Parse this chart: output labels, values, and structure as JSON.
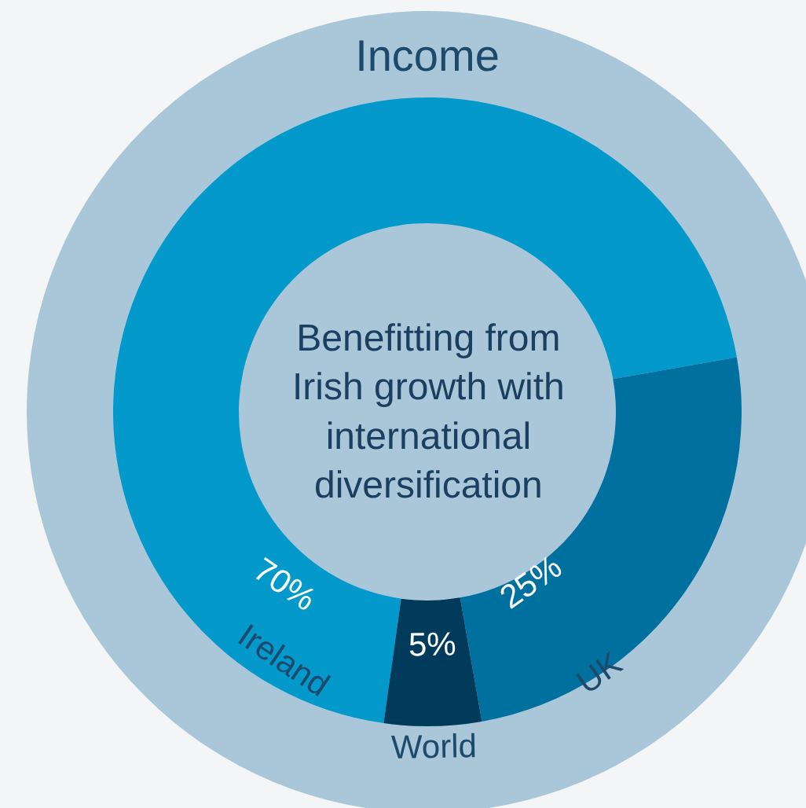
{
  "chart_data": {
    "type": "donut",
    "title": "Income",
    "categories": [
      "Ireland",
      "UK",
      "World"
    ],
    "values": [
      70,
      25,
      5
    ],
    "colors": [
      "#0399cb",
      "#00709f",
      "#003b5c"
    ],
    "value_labels": [
      "70%",
      "25%",
      "5%"
    ],
    "annotations": [
      "Benefitting from\nIrish growth with\ninternational\ndiversification"
    ],
    "legend": false
  }
}
